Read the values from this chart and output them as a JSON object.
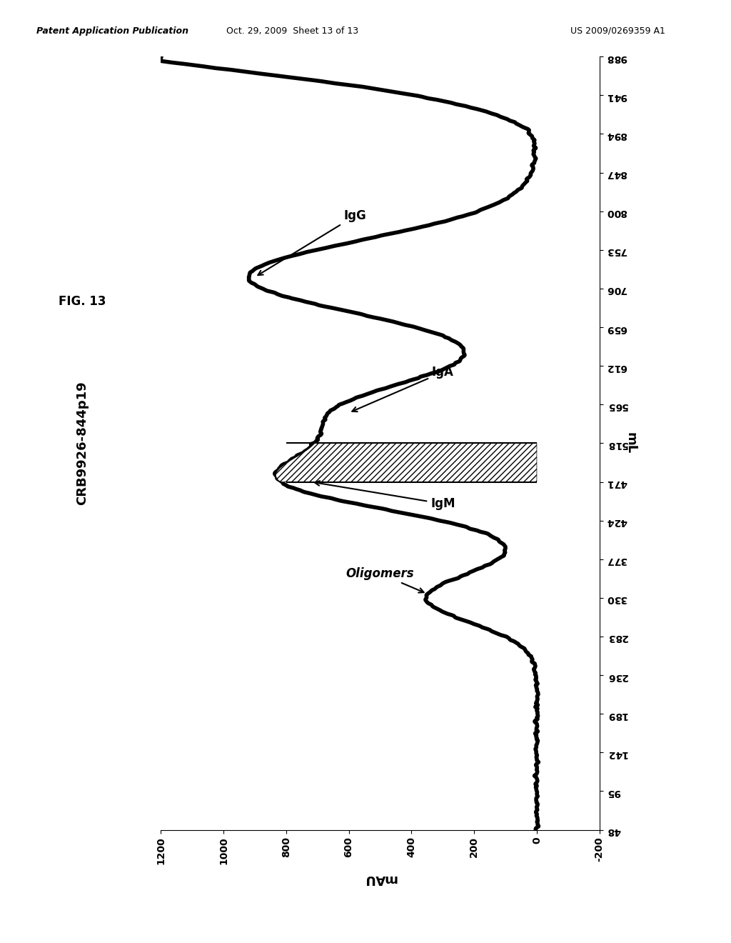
{
  "title": "CRB9926-844p19",
  "xlabel_rotated": "mAU",
  "ylabel_rotated": "mL",
  "x_ticks": [
    -200,
    0,
    200,
    400,
    600,
    800,
    1000,
    1200
  ],
  "y_ticks": [
    48,
    95,
    142,
    189,
    236,
    283,
    330,
    377,
    424,
    471,
    518,
    565,
    612,
    659,
    706,
    753,
    800,
    847,
    894,
    941,
    988
  ],
  "xlim": [
    -200,
    1200
  ],
  "ylim": [
    48,
    988
  ],
  "hatch_y1": 471,
  "hatch_y2": 518,
  "background": "#ffffff",
  "curve_color": "#000000",
  "curve_lw": 4,
  "header_left": "Patent Application Publication",
  "header_mid": "Oct. 29, 2009  Sheet 13 of 13",
  "header_right": "US 2009/0269359 A1",
  "fig_label": "FIG. 13"
}
